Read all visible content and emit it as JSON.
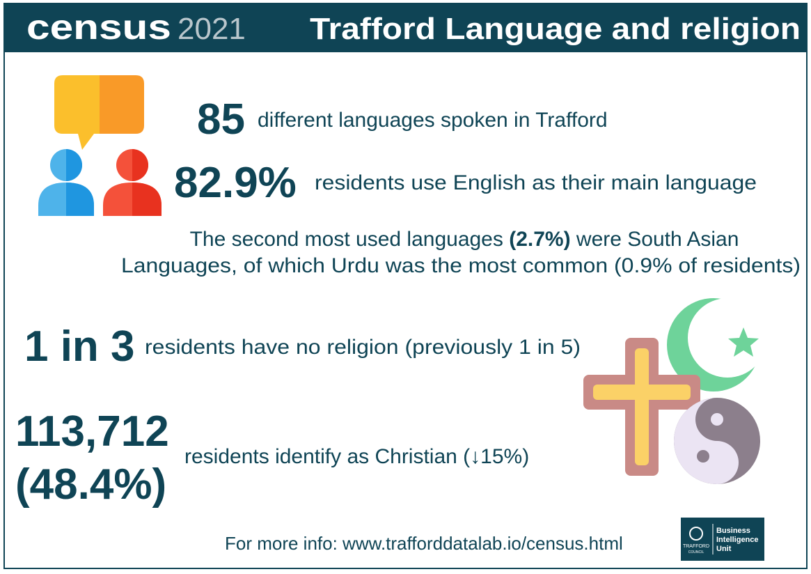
{
  "header": {
    "logo_word": "census",
    "logo_year": "2021",
    "title": "Trafford Language and religion"
  },
  "language": {
    "languages_count": "85",
    "languages_text": "different languages spoken in Trafford",
    "english_share": "82.9%",
    "english_text": "residents use English as their main language",
    "second_line1_start": "The second most used languages ",
    "second_share": "(2.7%)",
    "second_line1_end": " were South Asian",
    "second_line2": "Languages, of which Urdu was the most common (0.9% of residents)"
  },
  "religion": {
    "no_religion_ratio": "1 in 3",
    "no_religion_text": "residents have no religion (previously 1 in 5)",
    "christian_count": "113,712",
    "christian_share": "(48.4%)",
    "christian_text": "residents identify as Christian (↓15%)"
  },
  "footer": {
    "info": "For more info: www.trafforddatalab.io/census.html",
    "logo_org": "TRAFFORD",
    "logo_council": "COUNCIL",
    "logo_line1": "Business",
    "logo_line2": "Intelligence",
    "logo_line3": "Unit"
  }
}
